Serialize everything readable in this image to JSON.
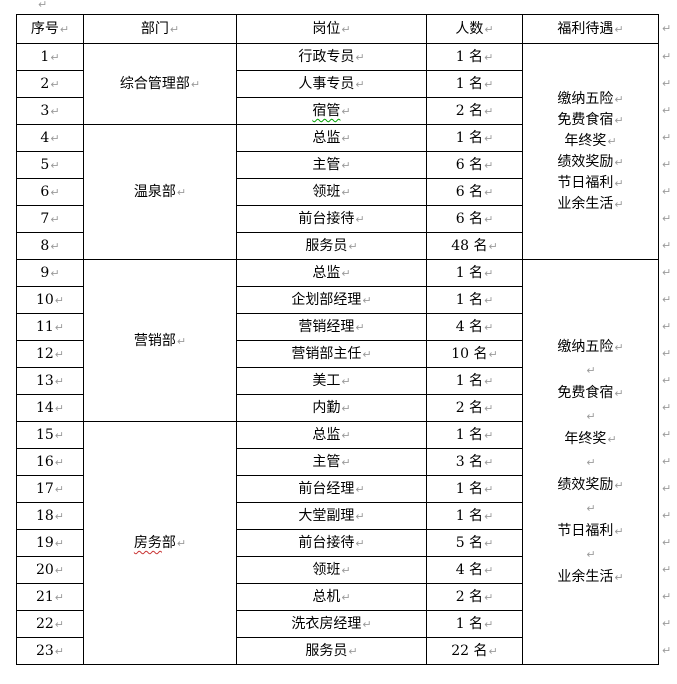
{
  "marks": {
    "paragraph": "↵"
  },
  "colors": {
    "border": "#000000",
    "text": "#000000",
    "mark": "#9b9b9b",
    "spell_green": "#00a000",
    "spell_red": "#c83232"
  },
  "table": {
    "headers": [
      "序号",
      "部门",
      "岗位",
      "人数",
      "福利待遇"
    ],
    "departments": {
      "admin": "综合管理部",
      "hot_spring": "温泉部",
      "marketing": "营销部",
      "housekeeping_flagged": "房务",
      "housekeeping_rest": "部"
    },
    "rows": [
      {
        "no": "1",
        "position": "行政专员",
        "count": "1 名"
      },
      {
        "no": "2",
        "position": "人事专员",
        "count": "1 名"
      },
      {
        "no": "3",
        "position": "宿管",
        "count": "2 名"
      },
      {
        "no": "4",
        "position": "总监",
        "count": "1 名"
      },
      {
        "no": "5",
        "position": "主管",
        "count": "6 名"
      },
      {
        "no": "6",
        "position": "领班",
        "count": "6 名"
      },
      {
        "no": "7",
        "position": "前台接待",
        "count": "6 名"
      },
      {
        "no": "8",
        "position": "服务员",
        "count": "48 名"
      },
      {
        "no": "9",
        "position": "总监",
        "count": "1 名"
      },
      {
        "no": "10",
        "position": "企划部经理",
        "count": "1 名"
      },
      {
        "no": "11",
        "position": "营销经理",
        "count": "4 名"
      },
      {
        "no": "12",
        "position": "营销部主任",
        "count": "10 名"
      },
      {
        "no": "13",
        "position": "美工",
        "count": "1 名"
      },
      {
        "no": "14",
        "position": "内勤",
        "count": "2 名"
      },
      {
        "no": "15",
        "position": "总监",
        "count": "1 名"
      },
      {
        "no": "16",
        "position": "主管",
        "count": "3 名"
      },
      {
        "no": "17",
        "position": "前台经理",
        "count": "1 名"
      },
      {
        "no": "18",
        "position": "大堂副理",
        "count": "1 名"
      },
      {
        "no": "19",
        "position": "前台接待",
        "count": "5 名"
      },
      {
        "no": "20",
        "position": "领班",
        "count": "4 名"
      },
      {
        "no": "21",
        "position": "总机",
        "count": "2 名"
      },
      {
        "no": "22",
        "position": "洗衣房经理",
        "count": "1 名"
      },
      {
        "no": "23",
        "position": "服务员",
        "count": "22 名"
      }
    ],
    "benefits_top": {
      "lines": [
        "缴纳五险",
        "免费食宿",
        "年终奖",
        "绩效奖励",
        "节日福利",
        "业余生活"
      ]
    },
    "benefits_bottom": {
      "lines": [
        "缴纳五险",
        "免费食宿",
        "年终奖",
        "绩效奖励",
        "节日福利",
        "业余生活"
      ]
    }
  }
}
